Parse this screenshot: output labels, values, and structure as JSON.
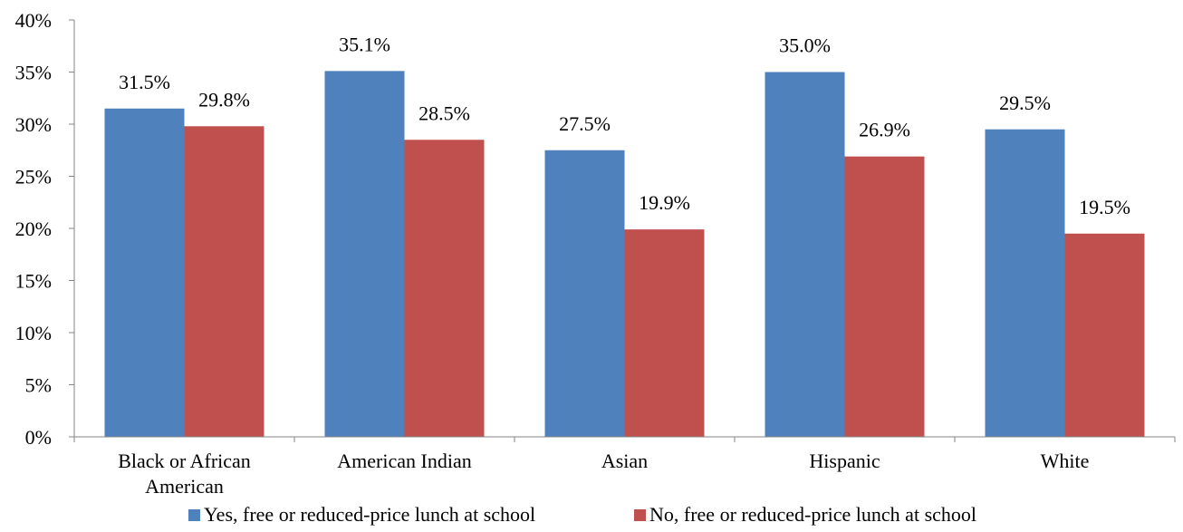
{
  "chart_data": {
    "type": "bar",
    "categories": [
      [
        "Black or African",
        "American"
      ],
      [
        "American Indian"
      ],
      [
        "Asian"
      ],
      [
        "Hispanic"
      ],
      [
        "White"
      ]
    ],
    "series": [
      {
        "name": "Yes, free or reduced-price lunch at school",
        "color": "#4F81BD",
        "values": [
          31.5,
          35.1,
          27.5,
          35.0,
          29.5
        ],
        "labels": [
          "31.5%",
          "35.1%",
          "27.5%",
          "35.0%",
          "29.5%"
        ]
      },
      {
        "name": "No, free or reduced-price lunch at school",
        "color": "#C0504D",
        "values": [
          29.8,
          28.5,
          19.9,
          26.9,
          19.5
        ],
        "labels": [
          "29.8%",
          "28.5%",
          "19.9%",
          "26.9%",
          "19.5%"
        ]
      }
    ],
    "ylim": [
      0,
      40
    ],
    "yticks": [
      "0%",
      "5%",
      "10%",
      "15%",
      "20%",
      "25%",
      "30%",
      "35%",
      "40%"
    ],
    "grid": false,
    "legend_position": "bottom",
    "axis_color": "#868686"
  }
}
